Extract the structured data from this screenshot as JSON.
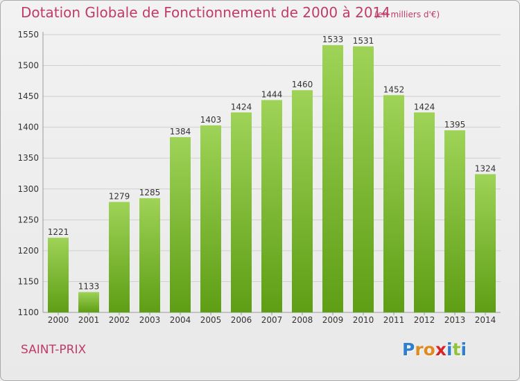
{
  "header": {
    "title": "Dotation Globale de Fonctionnement de 2000 à 2014",
    "unit_note": "(en milliers d'€)"
  },
  "footer": {
    "commune": "SAINT-PRIX",
    "logo_text": "Proxiti",
    "logo_letter_colors": [
      "#2f7fcf",
      "#e08a1f",
      "#e08a1f",
      "#d8232a",
      "#2f7fcf",
      "#8fc43a",
      "#2f7fcf"
    ]
  },
  "colors": {
    "bar_top": "#9ed357",
    "bar_bottom": "#5e9e15",
    "grid": "#cfcfcf",
    "axis_text": "#333333",
    "accent": "#c03a6a"
  },
  "chart_data": {
    "type": "bar",
    "title": "Dotation Globale de Fonctionnement de 2000 à 2014",
    "subtitle": "(en milliers d'€)",
    "xlabel": "",
    "ylabel": "",
    "categories": [
      "2000",
      "2001",
      "2002",
      "2003",
      "2004",
      "2005",
      "2006",
      "2007",
      "2008",
      "2009",
      "2010",
      "2011",
      "2012",
      "2013",
      "2014"
    ],
    "values": [
      1221,
      1133,
      1279,
      1285,
      1384,
      1403,
      1424,
      1444,
      1460,
      1533,
      1531,
      1452,
      1424,
      1395,
      1324
    ],
    "ylim": [
      1100,
      1550
    ],
    "yticks": [
      1100,
      1150,
      1200,
      1250,
      1300,
      1350,
      1400,
      1450,
      1500,
      1550
    ],
    "grid": true,
    "data_labels": true
  }
}
